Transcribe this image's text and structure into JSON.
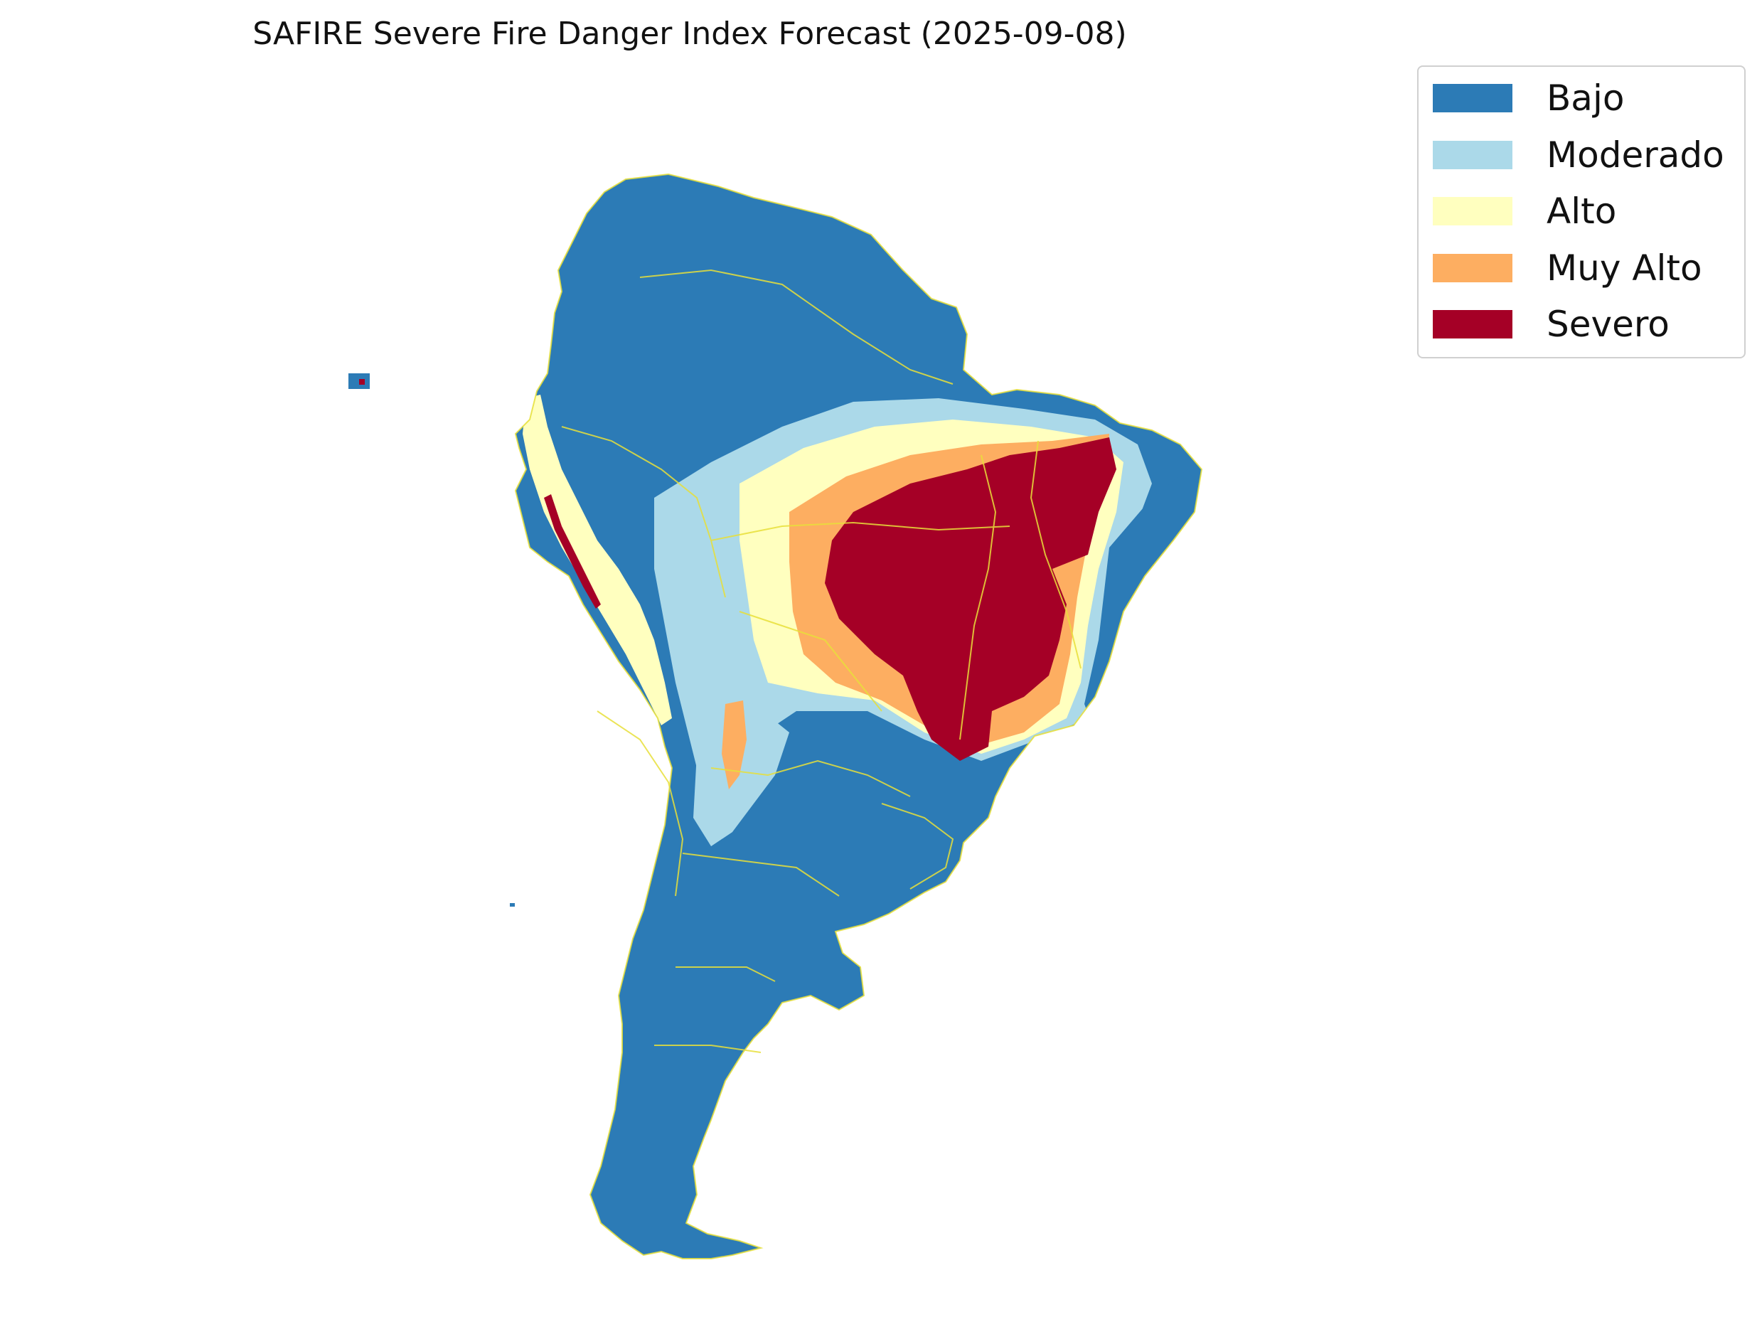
{
  "title": "SAFIRE Severe Fire Danger Index Forecast (2025-09-08)",
  "legend": {
    "placement": "top-right",
    "items": [
      {
        "label": "Bajo",
        "color": "#2c7bb6"
      },
      {
        "label": "Moderado",
        "color": "#abd9e9"
      },
      {
        "label": "Alto",
        "color": "#ffffbf"
      },
      {
        "label": "Muy Alto",
        "color": "#fdae61"
      },
      {
        "label": "Severo",
        "color": "#a50026"
      }
    ]
  },
  "map": {
    "region": "South America",
    "boundary_color": "#e8e03a",
    "categories": [
      "Bajo",
      "Moderado",
      "Alto",
      "Muy Alto",
      "Severo"
    ]
  }
}
